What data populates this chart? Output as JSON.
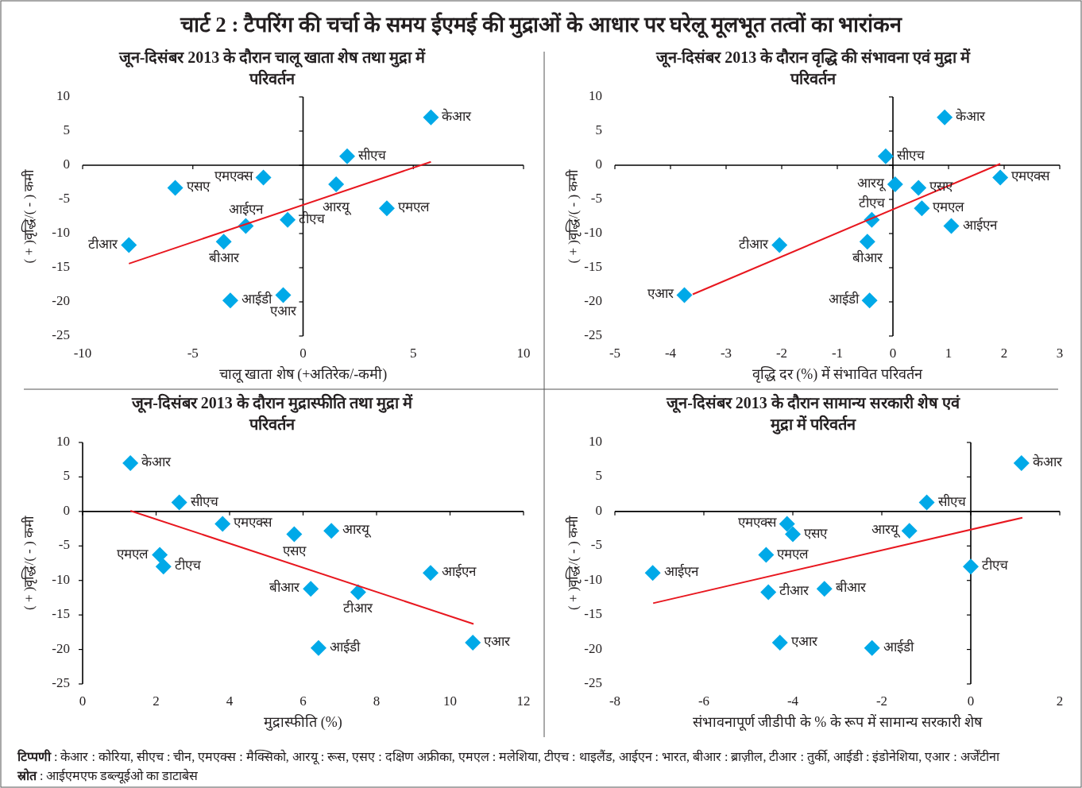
{
  "chart_data": [
    {
      "type": "scatter",
      "title": "जून-दिसंबर 2013 के दौरान चालू खाता शेष तथा मुद्रा में परिवर्तन",
      "xlabel": "चालू खाता शेष (+अतिरेक/-कमी)",
      "ylabel": "( + )वृद्धि/( - ) कमी",
      "xlim": [
        -10,
        10
      ],
      "ylim": [
        -25,
        10
      ],
      "xticks": [
        -10,
        -5,
        0,
        5,
        10
      ],
      "yticks": [
        -25,
        -20,
        -15,
        -10,
        -5,
        0,
        5,
        10
      ],
      "series": [
        {
          "marker": "diamond",
          "color": "#00a9e8",
          "x": [
            5.8,
            2.0,
            -1.8,
            1.5,
            -5.8,
            3.8,
            -0.7,
            -2.6,
            -3.6,
            -7.9,
            -3.3,
            -0.9
          ],
          "values": [
            7.0,
            1.3,
            -1.8,
            -2.8,
            -3.3,
            -6.3,
            -8.0,
            -8.9,
            -11.2,
            -11.7,
            -19.8,
            -19.0
          ]
        },
        {
          "type": "line",
          "color": "#e8171f",
          "x": [
            -7.9,
            5.8
          ],
          "values": [
            -14.4,
            0.5
          ]
        }
      ],
      "annotations": [
        "चार्ट 2 : टैपरिंग की चर्चा के समय ईएमई की मुद्राओं के आधार पर घरेलू मूलभूत तत्वों का भारांकन",
        {
          "text": "केआर",
          "x": 5.8,
          "y": 7.0
        },
        {
          "text": "सीएच",
          "x": 2.0,
          "y": 1.3
        },
        {
          "text": "एमएक्स",
          "x": -1.8,
          "y": -1.8
        },
        {
          "text": "आरयू",
          "x": 1.5,
          "y": -2.8
        },
        {
          "text": "एसए",
          "x": -5.8,
          "y": -3.3
        },
        {
          "text": "एमएल",
          "x": 3.8,
          "y": -6.3
        },
        {
          "text": "टीएच",
          "x": -0.7,
          "y": -8.0
        },
        {
          "text": "आईएन",
          "x": -2.6,
          "y": -8.9
        },
        {
          "text": "बीआर",
          "x": -3.6,
          "y": -11.2
        },
        {
          "text": "टीआर",
          "x": -7.9,
          "y": -11.7
        },
        {
          "text": "आईडी",
          "x": -3.3,
          "y": -19.8
        },
        {
          "text": "एआर",
          "x": -0.9,
          "y": -19.0
        }
      ]
    },
    {
      "type": "scatter",
      "title": "जून-दिसंबर 2013 के दौरान वृद्धि की संभावना एवं मुद्रा में परिवर्तन",
      "xlabel": "वृद्धि दर (%) में संभावित परिवर्तन",
      "ylabel": "( + )वृद्धि/( - ) कमी",
      "xlim": [
        -5,
        3
      ],
      "ylim": [
        -25,
        10
      ],
      "xticks": [
        -5,
        -4,
        -3,
        -2,
        -1,
        0,
        1,
        2,
        3
      ],
      "yticks": [
        -25,
        -20,
        -15,
        -10,
        -5,
        0,
        5,
        10
      ],
      "series": [
        {
          "marker": "diamond",
          "color": "#00a9e8",
          "x": [
            0.93,
            -0.13,
            1.93,
            0.04,
            0.46,
            0.52,
            -0.38,
            1.05,
            -0.46,
            -2.04,
            -0.42,
            -3.75
          ],
          "values": [
            7.0,
            1.3,
            -1.8,
            -2.8,
            -3.3,
            -6.3,
            -8.0,
            -8.9,
            -11.2,
            -11.7,
            -19.8,
            -19.0
          ]
        },
        {
          "type": "line",
          "color": "#e8171f",
          "x": [
            -3.6,
            1.93
          ],
          "values": [
            -18.9,
            0.2
          ]
        }
      ],
      "annotations": [
        {
          "text": "केआर",
          "x": 0.93,
          "y": 7.0
        },
        {
          "text": "सीएच",
          "x": -0.13,
          "y": 1.3
        },
        {
          "text": "एमएक्स",
          "x": 1.93,
          "y": -1.8
        },
        {
          "text": "आरयू",
          "x": 0.04,
          "y": -2.8
        },
        {
          "text": "एसए",
          "x": 0.46,
          "y": -3.3
        },
        {
          "text": "एमएल",
          "x": 0.52,
          "y": -6.3
        },
        {
          "text": "टीएच",
          "x": -0.38,
          "y": -8.0
        },
        {
          "text": "आईएन",
          "x": 1.05,
          "y": -8.9
        },
        {
          "text": "बीआर",
          "x": -0.46,
          "y": -11.2
        },
        {
          "text": "टीआर",
          "x": -2.04,
          "y": -11.7
        },
        {
          "text": "आईडी",
          "x": -0.42,
          "y": -19.8
        },
        {
          "text": "एआर",
          "x": -3.75,
          "y": -19.0
        }
      ]
    },
    {
      "type": "scatter",
      "title": "जून-दिसंबर 2013 के दौरान मुद्रास्फीति तथा मुद्रा में परिवर्तन",
      "xlabel": "मुद्रास्फीति (%)",
      "ylabel": "( + )वृद्धि/( - ) कमी",
      "xlim": [
        0,
        12
      ],
      "ylim": [
        -25,
        10
      ],
      "xticks": [
        0,
        2,
        4,
        6,
        8,
        10,
        12
      ],
      "yticks": [
        -25,
        -20,
        -15,
        -10,
        -5,
        0,
        5,
        10
      ],
      "series": [
        {
          "marker": "diamond",
          "color": "#00a9e8",
          "x": [
            1.3,
            2.63,
            3.81,
            6.77,
            5.76,
            2.1,
            2.2,
            9.47,
            6.21,
            7.5,
            6.42,
            10.62
          ],
          "values": [
            7.0,
            1.3,
            -1.8,
            -2.8,
            -3.3,
            -6.3,
            -8.0,
            -8.9,
            -11.2,
            -11.7,
            -19.8,
            -19.0
          ]
        },
        {
          "type": "line",
          "color": "#e8171f",
          "x": [
            1.3,
            10.64
          ],
          "values": [
            0.1,
            -16.3
          ]
        }
      ],
      "annotations": [
        {
          "text": "केआर",
          "x": 1.3,
          "y": 7.0
        },
        {
          "text": "सीएच",
          "x": 2.63,
          "y": 1.3
        },
        {
          "text": "एमएक्स",
          "x": 3.81,
          "y": -1.8
        },
        {
          "text": "आरयू",
          "x": 6.77,
          "y": -2.8
        },
        {
          "text": "एसए",
          "x": 5.76,
          "y": -3.3
        },
        {
          "text": "एमएल",
          "x": 2.1,
          "y": -6.3
        },
        {
          "text": "टीएच",
          "x": 2.2,
          "y": -8.0
        },
        {
          "text": "आईएन",
          "x": 9.47,
          "y": -8.9
        },
        {
          "text": "बीआर",
          "x": 6.21,
          "y": -11.2
        },
        {
          "text": "टीआर",
          "x": 7.5,
          "y": -11.7
        },
        {
          "text": "आईडी",
          "x": 6.42,
          "y": -19.8
        },
        {
          "text": "एआर",
          "x": 10.62,
          "y": -19.0
        }
      ]
    },
    {
      "type": "scatter",
      "title": "जून-दिसंबर 2013 के दौरान सामान्य सरकारी शेष एवं मुद्रा में परिवर्तन",
      "xlabel": "संभावनापूर्ण जीडीपी के % के रूप में सामान्य सरकारी शेष",
      "ylabel": "( + )वृद्धि/( - ) कमी",
      "xlim": [
        -8,
        2
      ],
      "ylim": [
        -25,
        10
      ],
      "xticks": [
        -8,
        -6,
        -4,
        -2,
        0,
        2
      ],
      "yticks": [
        -25,
        -20,
        -15,
        -10,
        -5,
        0,
        5,
        10
      ],
      "series": [
        {
          "marker": "diamond",
          "color": "#00a9e8",
          "x": [
            1.14,
            -0.99,
            -4.13,
            -1.38,
            -4.0,
            -4.6,
            0.0,
            -7.15,
            -3.29,
            -4.55,
            -2.22,
            -4.29
          ],
          "values": [
            7.0,
            1.3,
            -1.8,
            -2.8,
            -3.3,
            -6.3,
            -8.0,
            -8.9,
            -11.2,
            -11.7,
            -19.8,
            -19.0
          ]
        },
        {
          "type": "line",
          "color": "#e8171f",
          "x": [
            -7.14,
            1.16
          ],
          "values": [
            -13.3,
            -0.9
          ]
        }
      ],
      "annotations": [
        {
          "text": "केआर",
          "x": 1.14,
          "y": 7.0
        },
        {
          "text": "सीएच",
          "x": -0.99,
          "y": 1.3
        },
        {
          "text": "एमएक्स",
          "x": -4.13,
          "y": -1.8
        },
        {
          "text": "आरयू",
          "x": -1.38,
          "y": -2.8
        },
        {
          "text": "एसए",
          "x": -4.0,
          "y": -3.3
        },
        {
          "text": "एमएल",
          "x": -4.6,
          "y": -6.3
        },
        {
          "text": "टीएच",
          "x": 0.0,
          "y": -8.0
        },
        {
          "text": "आईएन",
          "x": -7.15,
          "y": -8.9
        },
        {
          "text": "बीआर",
          "x": -3.29,
          "y": -11.2
        },
        {
          "text": "टीआर",
          "x": -4.55,
          "y": -11.7
        },
        {
          "text": "आईडी",
          "x": -2.22,
          "y": -19.8
        },
        {
          "text": "एआर",
          "x": -4.29,
          "y": -19.0
        },
        "**टिप्पणी** : केआर : कोरिया, सीएच : चीन, एमएक्स : मैक्सिको, आरयू : रूस, एसए : दक्षिण अफ्रीका, एमएल : मलेशिया, टीएच : थाइलैंड, आईएन : भारत, बीआर : ब्राज़ील, टीआर : तुर्की, आईडी : इंडोनेशिया, एआर : अर्जेंटीना",
        "**स्रोत** : आईएमएफ डब्ल्यूईओ का डाटाबेस"
      ]
    }
  ]
}
